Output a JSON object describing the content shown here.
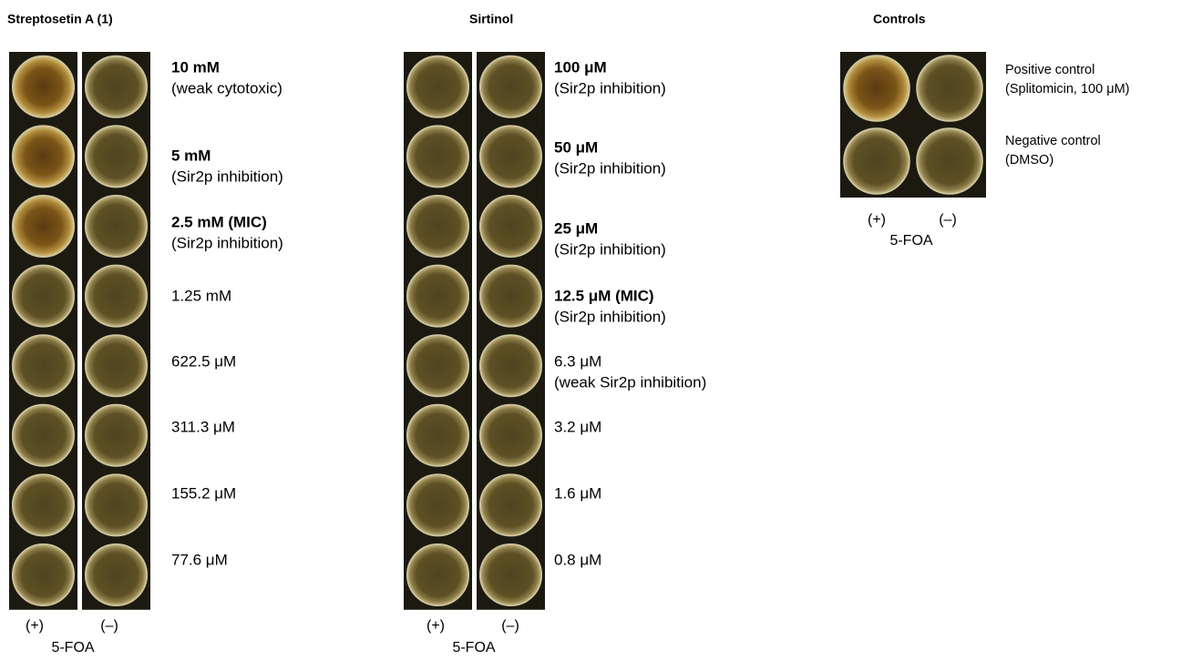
{
  "panels": [
    {
      "title": "Streptosetin A (1)",
      "rows": [
        {
          "label": "10 mM",
          "note": "(weak cytotoxic)",
          "bold": true
        },
        {
          "label": "5 mM",
          "note": "(Sir2p inhibition)",
          "bold": true
        },
        {
          "label": "2.5 mM (MIC)",
          "note": "(Sir2p inhibition)",
          "bold": true
        },
        {
          "label": "1.25 mM",
          "bold": false
        },
        {
          "label": "622.5 μM",
          "bold": false
        },
        {
          "label": "311.3 μM",
          "bold": false
        },
        {
          "label": "155.2 μM",
          "bold": false
        },
        {
          "label": "77.6 μM",
          "bold": false
        }
      ],
      "columns": [
        "(+)",
        "(–)"
      ],
      "axis_label": "5-FOA"
    },
    {
      "title": "Sirtinol",
      "rows": [
        {
          "label": "100 μM",
          "note": "(Sir2p inhibition)",
          "bold": true
        },
        {
          "label": "50 μM",
          "note": "(Sir2p inhibition)",
          "bold": true
        },
        {
          "label": "25 μM",
          "note": "(Sir2p inhibition)",
          "bold": true
        },
        {
          "label": "12.5 μM (MIC)",
          "note": "(Sir2p inhibition)",
          "bold": true
        },
        {
          "label": "6.3 μM",
          "note": "(weak Sir2p inhibition)",
          "bold": false
        },
        {
          "label": "3.2 μM",
          "bold": false
        },
        {
          "label": "1.6 μM",
          "bold": false
        },
        {
          "label": "0.8 μM",
          "bold": false
        }
      ],
      "columns": [
        "(+)",
        "(–)"
      ],
      "axis_label": "5-FOA"
    },
    {
      "title": "Controls",
      "rows": [
        {
          "label": "Positive control",
          "note": "(Splitomicin, 100 μM)",
          "bold": false
        },
        {
          "label": "Negative control",
          "note": "(DMSO)",
          "bold": false
        }
      ],
      "columns": [
        "(+)",
        "(–)"
      ],
      "axis_label": "5-FOA"
    }
  ]
}
